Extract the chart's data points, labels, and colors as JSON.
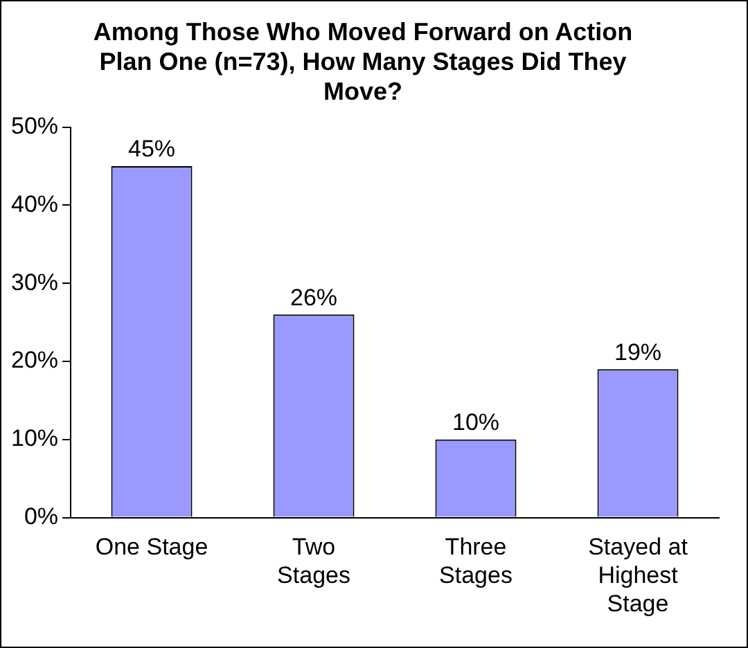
{
  "chart_data": {
    "type": "bar",
    "title": "Among Those Who Moved Forward on Action Plan One (n=73), How Many Stages Did They Move?",
    "categories": [
      "One Stage",
      "Two Stages",
      "Three Stages",
      "Stayed at Highest Stage"
    ],
    "values": [
      45,
      26,
      10,
      19
    ],
    "value_labels": [
      "45%",
      "26%",
      "10%",
      "19%"
    ],
    "color": "#9999ff",
    "ylim": [
      0,
      50
    ],
    "yticks": [
      {
        "value": 0,
        "label": "0%"
      },
      {
        "value": 10,
        "label": "10%"
      },
      {
        "value": 20,
        "label": "20%"
      },
      {
        "value": 30,
        "label": "30%"
      },
      {
        "value": 40,
        "label": "40%"
      },
      {
        "value": 50,
        "label": "50%"
      }
    ],
    "grid": false,
    "legend": false
  }
}
